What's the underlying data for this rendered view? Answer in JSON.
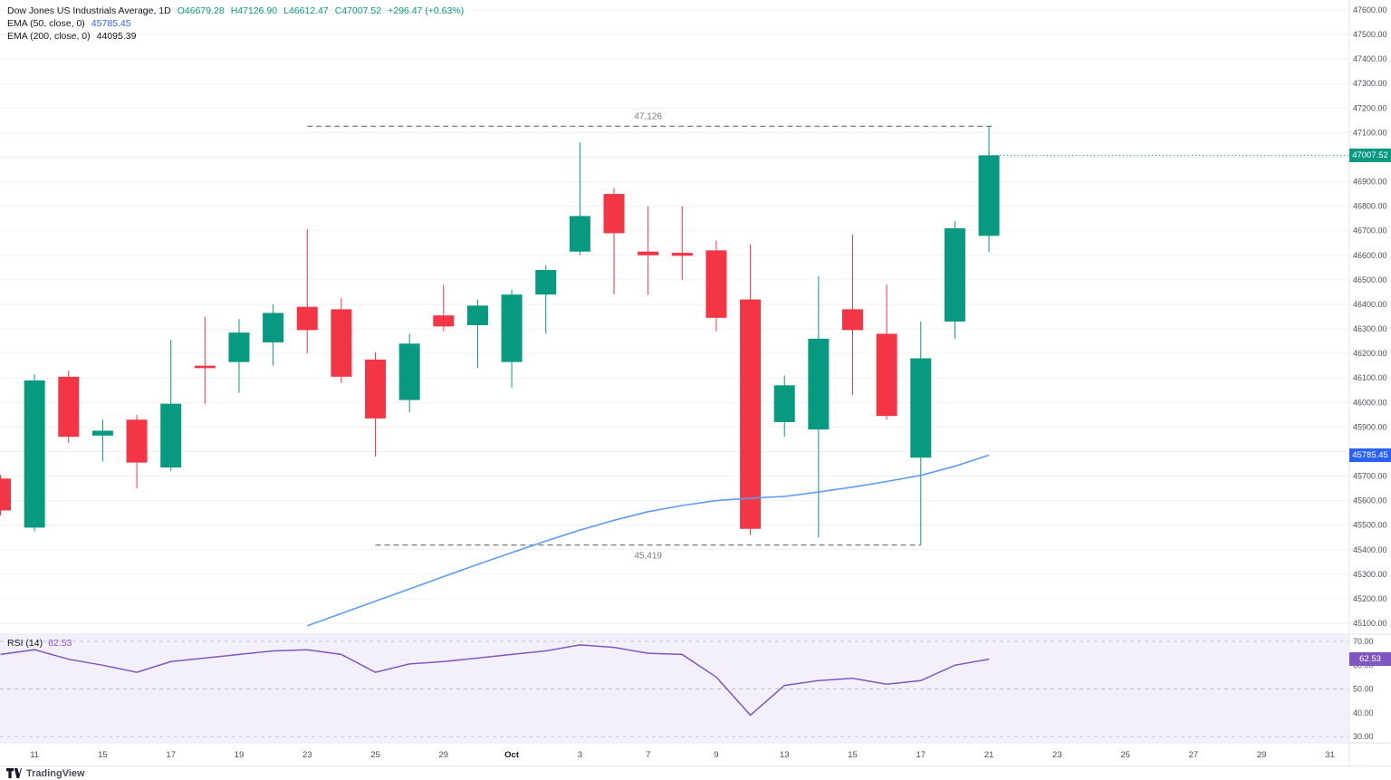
{
  "colors": {
    "up": "#089981",
    "down": "#f23645",
    "ema50": "#5b9cf6",
    "rsi": "#7e57c2",
    "rsi_bg": "#f4f0fb",
    "grid": "#f0f1f3",
    "axis_text": "#4a4e59",
    "level": "#787b86"
  },
  "legend": {
    "symbol": "Dow Jones US Industrials Average, 1D",
    "open": "O46679.28",
    "high": "H47126.90",
    "low": "L46612.47",
    "close": "C47007.52",
    "change": "+296.47 (+0.63%)",
    "ema50_label": "EMA (50, close, 0)",
    "ema50_value": "45785.45",
    "ema200_label": "EMA (200, close, 0)",
    "ema200_value": "44095.39"
  },
  "rsi_legend": {
    "label": "RSI (14)",
    "value": "62.53"
  },
  "badges": {
    "close": "47007.52",
    "ema50": "45785.45",
    "rsi": "62.53"
  },
  "logo": {
    "text": "TradingView"
  },
  "chart_data": {
    "type": "candlestick",
    "title": "Dow Jones US Industrials Average, 1D",
    "price_axis": {
      "min": 45100,
      "max": 47600,
      "step": 100
    },
    "rsi_axis": {
      "min": 30,
      "max": 70,
      "step": 10,
      "guides": [
        70,
        50,
        30
      ]
    },
    "x_labels": [
      "11",
      "15",
      "17",
      "19",
      "23",
      "25",
      "29",
      "Oct",
      "3",
      "7",
      "9",
      "13",
      "15",
      "17",
      "21",
      "23",
      "25",
      "27",
      "29",
      "31"
    ],
    "candles": [
      [
        45690,
        45705,
        45540,
        45560
      ],
      [
        45490,
        46115,
        45475,
        46090
      ],
      [
        46105,
        46130,
        45835,
        45860
      ],
      [
        45865,
        45930,
        45760,
        45885
      ],
      [
        45930,
        45950,
        45650,
        45755
      ],
      [
        45735,
        46255,
        45720,
        45995
      ],
      [
        46150,
        46350,
        45995,
        46140
      ],
      [
        46165,
        46340,
        46040,
        46285
      ],
      [
        46245,
        46400,
        46150,
        46365
      ],
      [
        46390,
        46705,
        46200,
        46295
      ],
      [
        46380,
        46425,
        46080,
        46105
      ],
      [
        46175,
        46205,
        45780,
        45935
      ],
      [
        46010,
        46280,
        45960,
        46240
      ],
      [
        46355,
        46480,
        46290,
        46310
      ],
      [
        46315,
        46420,
        46140,
        46395
      ],
      [
        46165,
        46460,
        46060,
        46440
      ],
      [
        46440,
        46560,
        46280,
        46540
      ],
      [
        46615,
        47060,
        46600,
        46760
      ],
      [
        46850,
        46875,
        46440,
        46690
      ],
      [
        46615,
        46800,
        46440,
        46600
      ],
      [
        46610,
        46800,
        46500,
        46598
      ],
      [
        46620,
        46660,
        46290,
        46345
      ],
      [
        46420,
        46645,
        45460,
        45485
      ],
      [
        45920,
        46110,
        45860,
        46070
      ],
      [
        45890,
        46515,
        45450,
        46260
      ],
      [
        46380,
        46685,
        46030,
        46295
      ],
      [
        46280,
        46480,
        45930,
        45945
      ],
      [
        45775,
        46330,
        45420,
        46180
      ],
      [
        46330,
        46740,
        46260,
        46710
      ],
      [
        46679.28,
        47126.9,
        46612.47,
        47007.52
      ]
    ],
    "ema50": {
      "start_index": 9,
      "values": [
        45090,
        45140,
        45190,
        45240,
        45290,
        45340,
        45388,
        45435,
        45480,
        45520,
        45555,
        45580,
        45600,
        45610,
        45617,
        45635,
        45655,
        45678,
        45703,
        45740,
        45785.45
      ]
    },
    "rsi": [
      64.5,
      66.5,
      62.5,
      60,
      57,
      61.5,
      63,
      64.5,
      66,
      66.5,
      64.5,
      57,
      60.5,
      61.5,
      63,
      64.5,
      66,
      68.5,
      67.5,
      65,
      64.5,
      55,
      39,
      51.5,
      53.5,
      54.5,
      52,
      53.5,
      60,
      62.53
    ],
    "levels": [
      {
        "price": 47126,
        "label": "47,126",
        "from": 9,
        "to": 29.15,
        "label_at": 19,
        "label_below": false
      },
      {
        "price": 45419,
        "label": "45,419",
        "from": 11,
        "to": 27,
        "label_at": 19,
        "label_below": true
      }
    ]
  }
}
